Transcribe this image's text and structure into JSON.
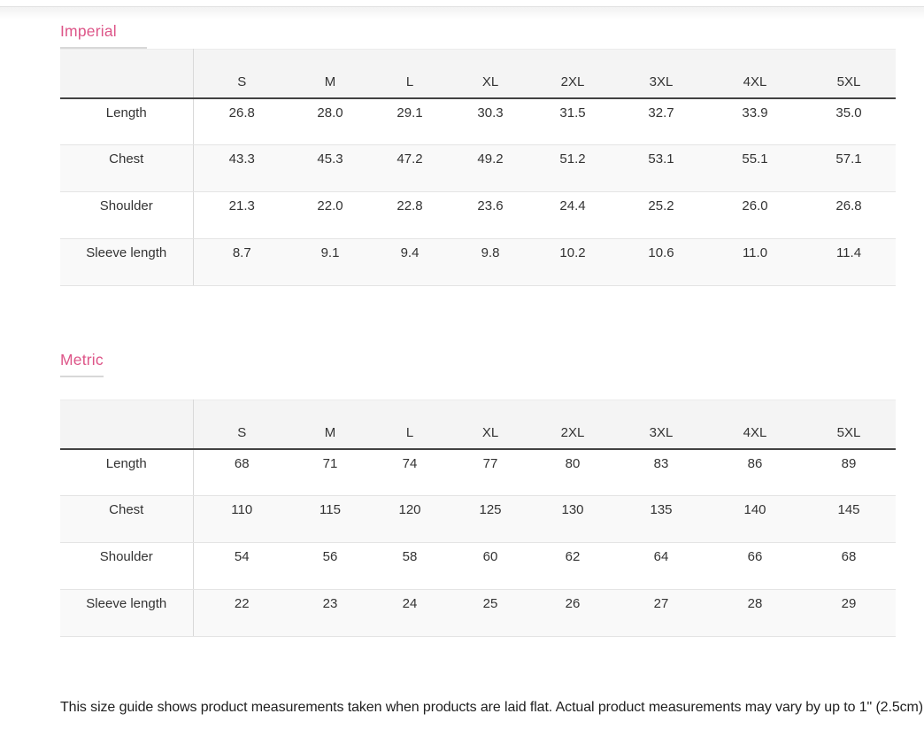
{
  "colors": {
    "accent_pink": "#dd5588",
    "table_header_bg": "#f4f4f4",
    "zebra_row_bg": "#f9f9f9",
    "header_rule_dark": "#424242",
    "row_border_light": "#e4e4e4"
  },
  "size_headers": [
    "S",
    "M",
    "L",
    "XL",
    "2XL",
    "3XL",
    "4XL",
    "5XL"
  ],
  "sections": [
    {
      "title": "Imperial",
      "rows": [
        {
          "label": "Length",
          "values": [
            "26.8",
            "28.0",
            "29.1",
            "30.3",
            "31.5",
            "32.7",
            "33.9",
            "35.0"
          ]
        },
        {
          "label": "Chest",
          "values": [
            "43.3",
            "45.3",
            "47.2",
            "49.2",
            "51.2",
            "53.1",
            "55.1",
            "57.1"
          ]
        },
        {
          "label": "Shoulder",
          "values": [
            "21.3",
            "22.0",
            "22.8",
            "23.6",
            "24.4",
            "25.2",
            "26.0",
            "26.8"
          ]
        },
        {
          "label": "Sleeve length",
          "values": [
            "8.7",
            "9.1",
            "9.4",
            "9.8",
            "10.2",
            "10.6",
            "11.0",
            "11.4"
          ]
        }
      ]
    },
    {
      "title": "Metric",
      "rows": [
        {
          "label": "Length",
          "values": [
            "68",
            "71",
            "74",
            "77",
            "80",
            "83",
            "86",
            "89"
          ]
        },
        {
          "label": "Chest",
          "values": [
            "110",
            "115",
            "120",
            "125",
            "130",
            "135",
            "140",
            "145"
          ]
        },
        {
          "label": "Shoulder",
          "values": [
            "54",
            "56",
            "58",
            "60",
            "62",
            "64",
            "66",
            "68"
          ]
        },
        {
          "label": "Sleeve length",
          "values": [
            "22",
            "23",
            "24",
            "25",
            "26",
            "27",
            "28",
            "29"
          ]
        }
      ]
    }
  ],
  "note": "This size guide shows product measurements taken when products are laid flat. Actual product measurements may vary by up to 1\" (2.5cm)."
}
